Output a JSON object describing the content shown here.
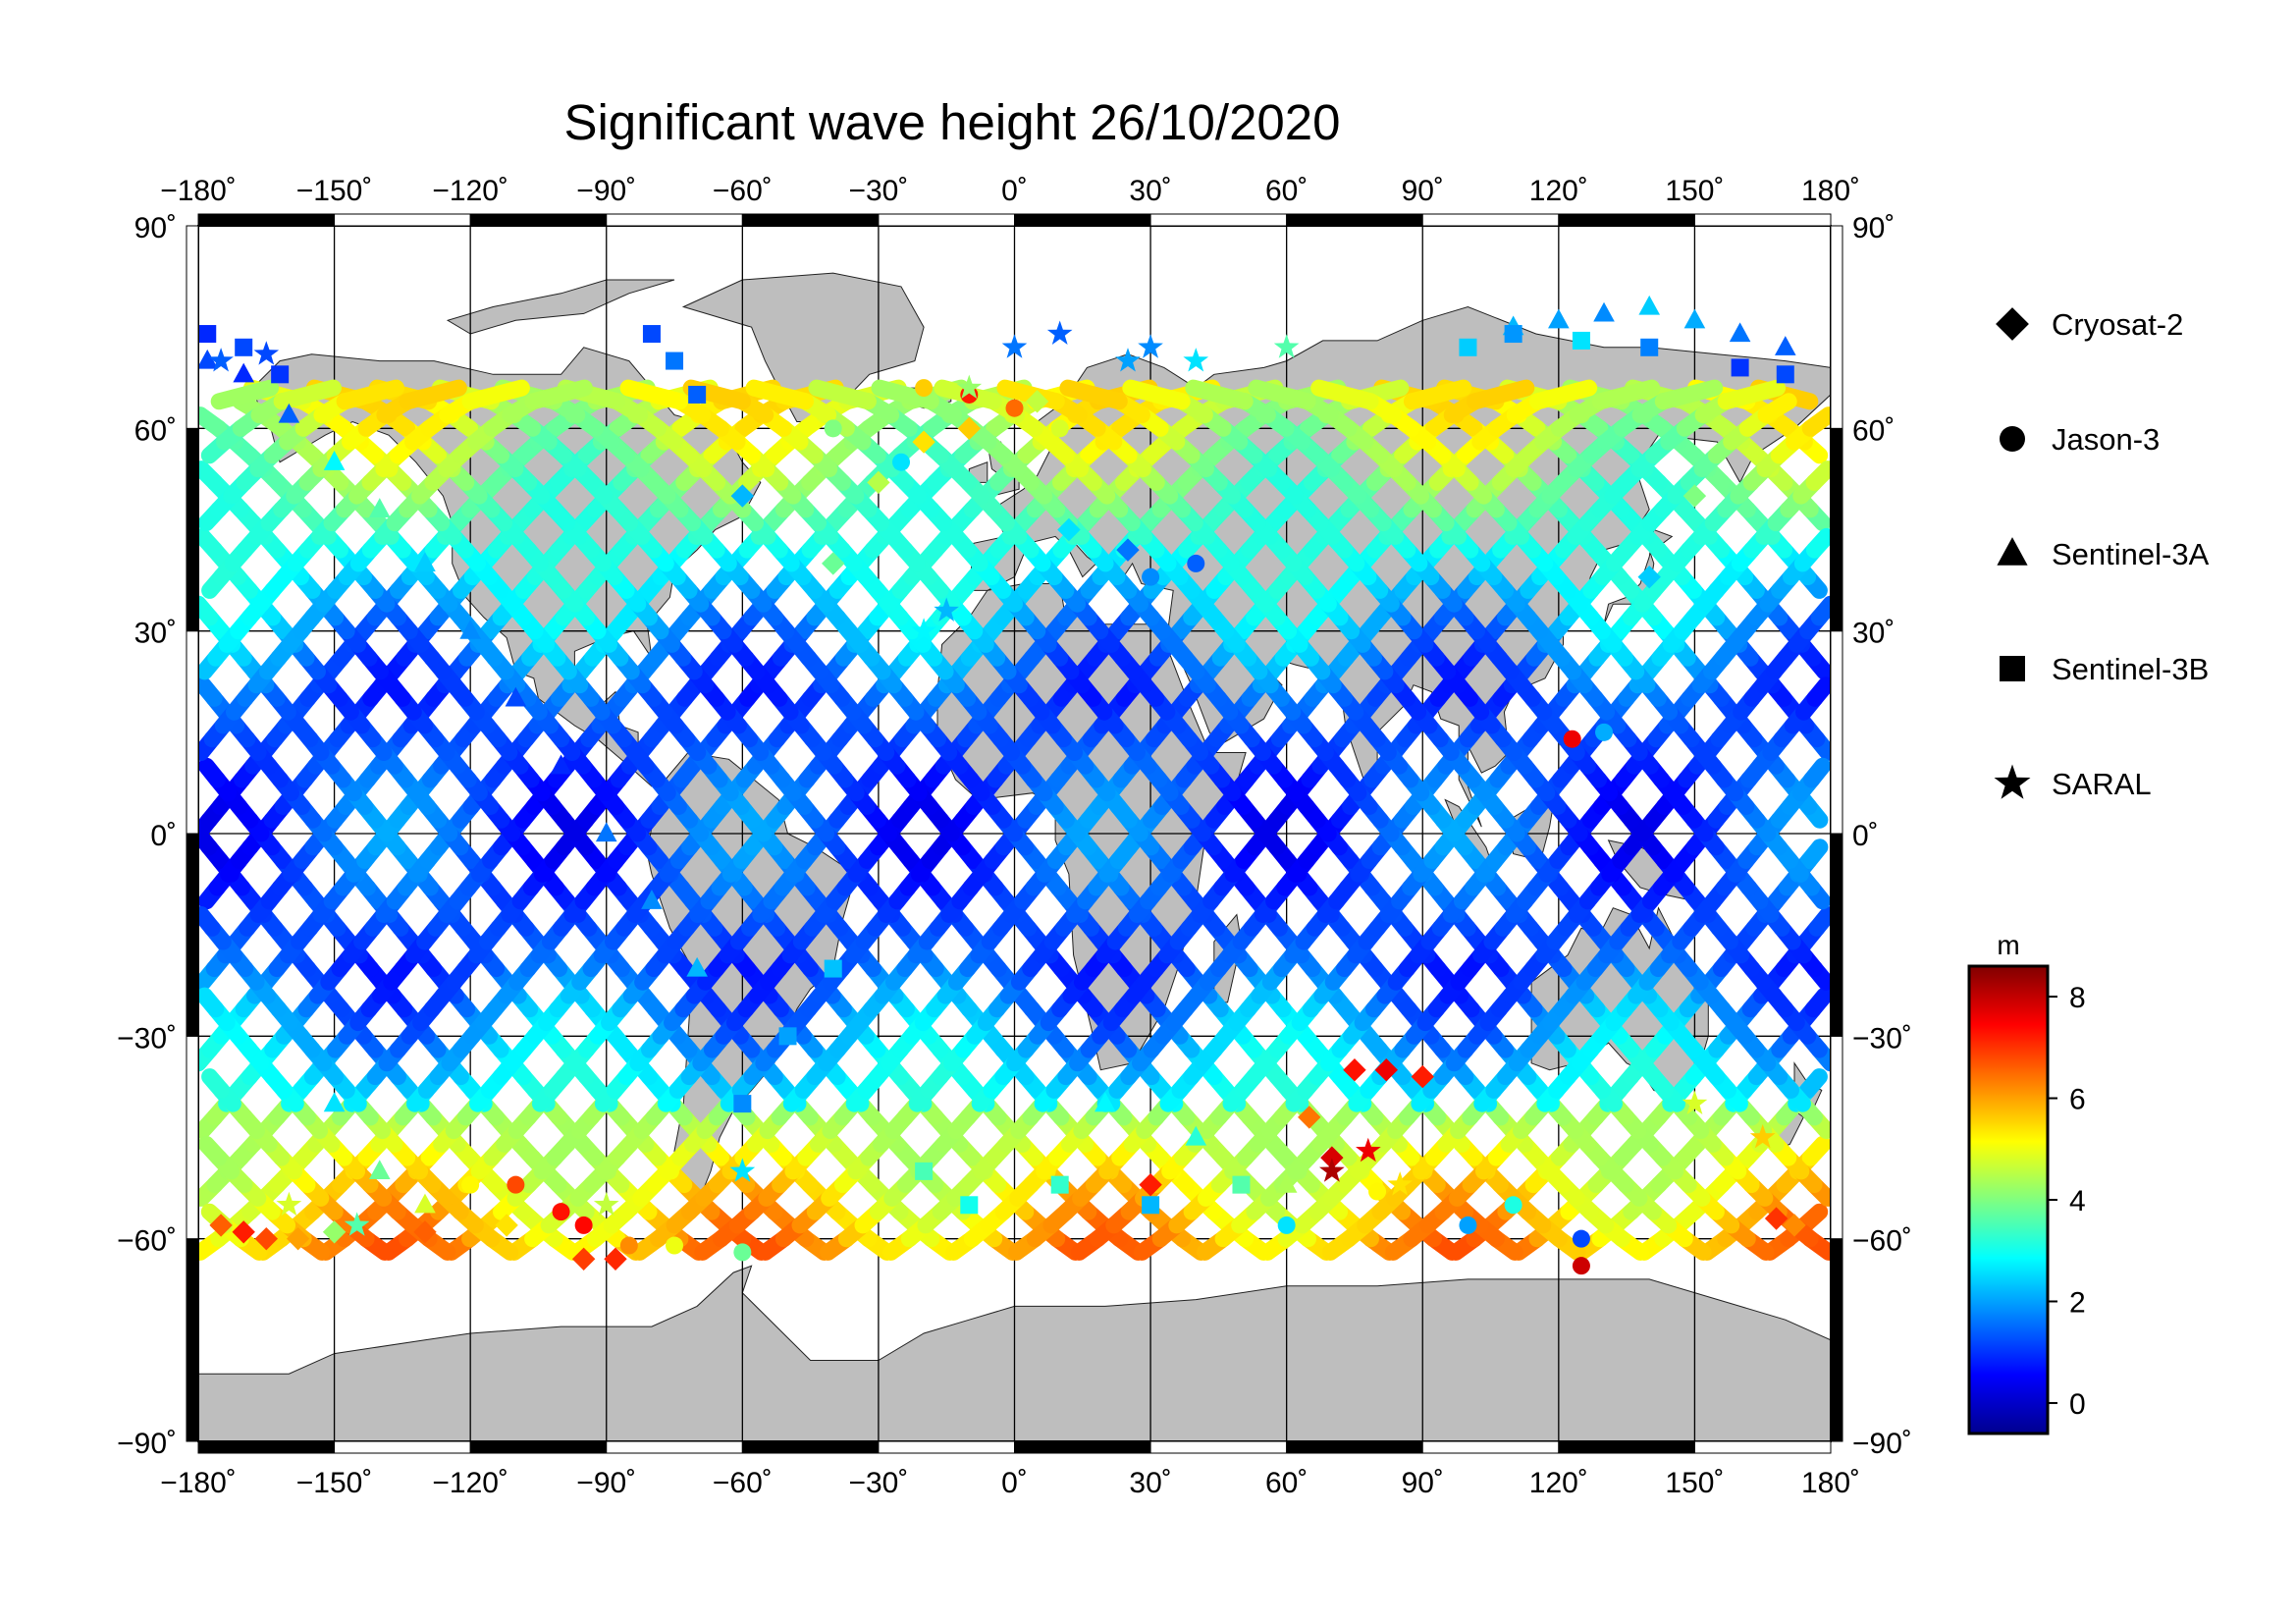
{
  "title": "Significant wave height 26/10/2020",
  "map": {
    "projection": "equirectangular",
    "lon_range": [
      -180,
      180
    ],
    "lat_range": [
      -90,
      90
    ],
    "lon_ticks": [
      -180,
      -150,
      -120,
      -90,
      -60,
      -30,
      0,
      30,
      60,
      90,
      120,
      150,
      180
    ],
    "lat_ticks": [
      -90,
      -60,
      -30,
      0,
      30,
      60,
      90
    ],
    "lon_tick_labels": [
      "−180˚",
      "−150˚",
      "−120˚",
      "−90˚",
      "−60˚",
      "−30˚",
      "0˚",
      "30˚",
      "60˚",
      "90˚",
      "120˚",
      "150˚",
      "180˚"
    ],
    "lat_tick_labels": [
      "−90˚",
      "−60˚",
      "−30˚",
      "0˚",
      "30˚",
      "60˚",
      "90˚"
    ],
    "land_color": "#bebebe",
    "grid": true
  },
  "legend": {
    "items": [
      {
        "label": "Cryosat-2",
        "symbol": "diamond"
      },
      {
        "label": "Jason-3",
        "symbol": "circle"
      },
      {
        "label": "Sentinel-3A",
        "symbol": "triangle"
      },
      {
        "label": "Sentinel-3B",
        "symbol": "square"
      },
      {
        "label": "SARAL",
        "symbol": "star"
      }
    ]
  },
  "colorbar": {
    "unit": "m",
    "min": -0.6,
    "max": 8.6,
    "tick_values": [
      0,
      2,
      4,
      6,
      8
    ],
    "tick_labels": [
      "0",
      "2",
      "4",
      "6",
      "8"
    ],
    "colormap": [
      "#00008f",
      "#0000ff",
      "#0080ff",
      "#00ffff",
      "#80ff80",
      "#ffff00",
      "#ff8000",
      "#ff0000",
      "#800000"
    ]
  },
  "chart_data": {
    "type": "scatter",
    "title": "Significant wave height 26/10/2020",
    "value_label": "m",
    "xlim": [
      -180,
      180
    ],
    "ylim": [
      -90,
      90
    ],
    "series": [
      {
        "name": "Cryosat-2",
        "points": [
          [
            -175,
            -58,
            6.6
          ],
          [
            -170,
            -59,
            7.2
          ],
          [
            -165,
            -60,
            6.8
          ],
          [
            -158,
            -60,
            6.0
          ],
          [
            -150,
            -59,
            4.2
          ],
          [
            -130,
            -59,
            6.6
          ],
          [
            -112,
            -58,
            5.4
          ],
          [
            -95,
            -63,
            6.9
          ],
          [
            -88,
            -63,
            7.1
          ],
          [
            -40,
            40,
            3.8
          ],
          [
            -30,
            52,
            4.5
          ],
          [
            -20,
            58,
            5.4
          ],
          [
            -10,
            60,
            5.6
          ],
          [
            5,
            64,
            4.6
          ],
          [
            30,
            -52,
            7.2
          ],
          [
            65,
            -42,
            6.4
          ],
          [
            70,
            -48,
            7.8
          ],
          [
            75,
            -35,
            7.3
          ],
          [
            82,
            -35,
            7.6
          ],
          [
            90,
            -36,
            7.2
          ],
          [
            168,
            -57,
            7.0
          ],
          [
            172,
            -58,
            6.2
          ],
          [
            150,
            50,
            4.0
          ],
          [
            140,
            38,
            2.4
          ],
          [
            25,
            42,
            1.6
          ],
          [
            12,
            45,
            2.6
          ],
          [
            -60,
            50,
            2.2
          ]
        ]
      },
      {
        "name": "Jason-3",
        "points": [
          [
            -120,
            -52,
            5.2
          ],
          [
            -110,
            -52,
            6.8
          ],
          [
            -100,
            -56,
            7.3
          ],
          [
            -95,
            -58,
            7.4
          ],
          [
            -85,
            -61,
            6.2
          ],
          [
            -75,
            -61,
            5.0
          ],
          [
            -60,
            -62,
            3.8
          ],
          [
            -20,
            66,
            5.6
          ],
          [
            -10,
            65,
            7.2
          ],
          [
            0,
            63,
            6.5
          ],
          [
            10,
            60,
            4.8
          ],
          [
            -40,
            60,
            4.0
          ],
          [
            -25,
            55,
            2.6
          ],
          [
            40,
            40,
            1.4
          ],
          [
            30,
            38,
            1.8
          ],
          [
            60,
            -58,
            2.6
          ],
          [
            80,
            -53,
            5.2
          ],
          [
            100,
            -58,
            2.0
          ],
          [
            110,
            -55,
            3.1
          ],
          [
            125,
            -60,
            1.2
          ],
          [
            125,
            -64,
            7.9
          ],
          [
            123,
            14,
            7.6
          ],
          [
            130,
            15,
            2.1
          ]
        ]
      },
      {
        "name": "Sentinel-3A",
        "points": [
          [
            -178,
            70,
            1.2
          ],
          [
            -170,
            68,
            0.9
          ],
          [
            -160,
            62,
            1.4
          ],
          [
            -150,
            55,
            2.8
          ],
          [
            -140,
            48,
            3.6
          ],
          [
            -130,
            40,
            2.4
          ],
          [
            -120,
            30,
            1.8
          ],
          [
            -110,
            20,
            1.2
          ],
          [
            -100,
            10,
            0.9
          ],
          [
            -90,
            0,
            1.6
          ],
          [
            -80,
            -10,
            1.8
          ],
          [
            -70,
            -20,
            2.2
          ],
          [
            110,
            75,
            2.2
          ],
          [
            120,
            76,
            2.0
          ],
          [
            130,
            77,
            1.8
          ],
          [
            140,
            78,
            2.4
          ],
          [
            150,
            76,
            2.1
          ],
          [
            160,
            74,
            1.6
          ],
          [
            170,
            72,
            1.4
          ],
          [
            -150,
            -40,
            2.6
          ],
          [
            -140,
            -50,
            3.8
          ],
          [
            -130,
            -55,
            4.8
          ],
          [
            20,
            -40,
            2.8
          ],
          [
            40,
            -45,
            3.2
          ],
          [
            60,
            -52,
            4.4
          ]
        ]
      },
      {
        "name": "Sentinel-3B",
        "points": [
          [
            -178,
            74,
            0.9
          ],
          [
            -170,
            72,
            1.2
          ],
          [
            -162,
            68,
            1.0
          ],
          [
            -80,
            74,
            1.2
          ],
          [
            -75,
            70,
            1.6
          ],
          [
            -70,
            65,
            1.4
          ],
          [
            100,
            72,
            2.4
          ],
          [
            110,
            74,
            1.9
          ],
          [
            125,
            73,
            2.6
          ],
          [
            140,
            72,
            1.7
          ],
          [
            160,
            69,
            1.0
          ],
          [
            170,
            68,
            1.2
          ],
          [
            -20,
            -50,
            3.5
          ],
          [
            -10,
            -55,
            3.0
          ],
          [
            10,
            -52,
            3.3
          ],
          [
            30,
            -55,
            2.2
          ],
          [
            50,
            -52,
            3.6
          ],
          [
            -60,
            -40,
            1.8
          ],
          [
            -50,
            -30,
            2.0
          ],
          [
            -40,
            -20,
            2.3
          ]
        ]
      },
      {
        "name": "SARAL",
        "points": [
          [
            -175,
            70,
            1.4
          ],
          [
            -165,
            71,
            1.2
          ],
          [
            -10,
            66,
            4.2
          ],
          [
            0,
            72,
            1.6
          ],
          [
            10,
            74,
            1.4
          ],
          [
            25,
            70,
            2.0
          ],
          [
            30,
            72,
            1.8
          ],
          [
            40,
            70,
            2.6
          ],
          [
            70,
            -50,
            8.2
          ],
          [
            78,
            -47,
            7.6
          ],
          [
            85,
            -52,
            5.4
          ],
          [
            -160,
            -55,
            4.8
          ],
          [
            -145,
            -58,
            3.6
          ],
          [
            -90,
            -55,
            4.6
          ],
          [
            -60,
            -50,
            2.6
          ],
          [
            -20,
            30,
            2.8
          ],
          [
            -15,
            33,
            2.2
          ],
          [
            60,
            72,
            3.6
          ],
          [
            150,
            -40,
            4.8
          ],
          [
            165,
            -45,
            5.6
          ]
        ]
      }
    ]
  }
}
